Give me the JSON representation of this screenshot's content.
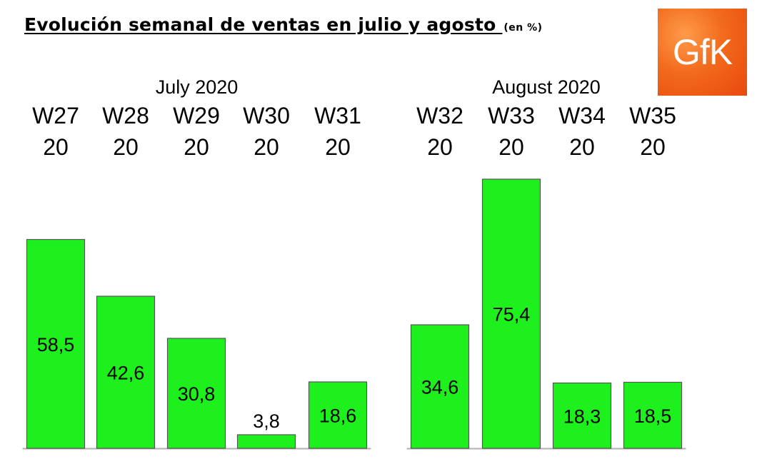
{
  "header": {
    "title": "Evolución semanal de ventas en julio y agosto ",
    "unit": "(en %)"
  },
  "logo": {
    "text": "GfK",
    "color": "#f26a1b"
  },
  "chart_data": {
    "type": "bar",
    "groups": [
      {
        "label": "July 2020",
        "categories": [
          "W27 20",
          "W28 20",
          "W29 20",
          "W30 20",
          "W31 20"
        ]
      },
      {
        "label": "August 2020",
        "categories": [
          "W32 20",
          "W33 20",
          "W34 20",
          "W35 20"
        ]
      }
    ],
    "categories": [
      "W27 20",
      "W28 20",
      "W29 20",
      "W30 20",
      "W31 20",
      "W32 20",
      "W33 20",
      "W34 20",
      "W35 20"
    ],
    "values": [
      58.5,
      42.6,
      30.8,
      3.8,
      18.6,
      34.6,
      75.4,
      18.3,
      18.5
    ],
    "value_labels": [
      "58,5",
      "42,6",
      "30,8",
      "3,8",
      "18,6",
      "34,6",
      "75,4",
      "18,3",
      "18,5"
    ],
    "title": "Evolución semanal de ventas en julio y agosto",
    "ylim": [
      0,
      80
    ],
    "grid": false,
    "bar_color": "#1ef01e",
    "bar_border_color": "#555555"
  }
}
